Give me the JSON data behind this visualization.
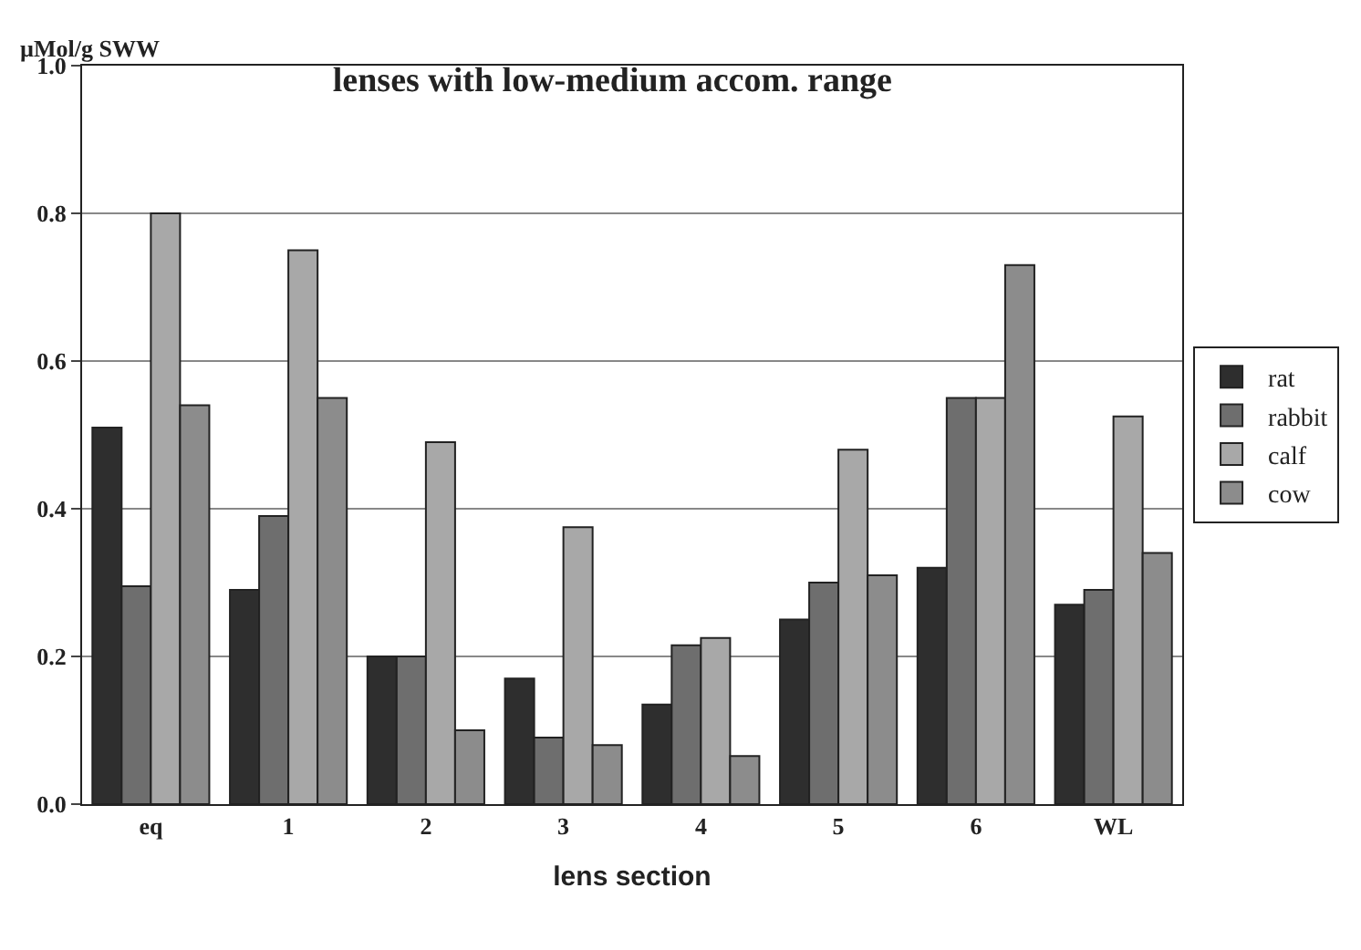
{
  "chart_data": {
    "type": "bar",
    "title": "lenses with low-medium accom. range",
    "xlabel": "lens section",
    "ylabel": "µMol/g SWW",
    "categories": [
      "eq",
      "1",
      "2",
      "3",
      "4",
      "5",
      "6",
      "WL"
    ],
    "series": [
      {
        "name": "rat",
        "color": "#2e2e2e",
        "values": [
          0.51,
          0.29,
          0.2,
          0.17,
          0.135,
          0.25,
          0.32,
          0.27
        ]
      },
      {
        "name": "rabbit",
        "color": "#6e6e6e",
        "values": [
          0.295,
          0.39,
          0.2,
          0.09,
          0.215,
          0.3,
          0.55,
          0.29
        ]
      },
      {
        "name": "calf",
        "color": "#a8a8a8",
        "values": [
          0.8,
          0.75,
          0.49,
          0.375,
          0.225,
          0.48,
          0.55,
          0.525
        ]
      },
      {
        "name": "cow",
        "color": "#8c8c8c",
        "values": [
          0.54,
          0.55,
          0.1,
          0.08,
          0.065,
          0.31,
          0.73,
          0.34
        ]
      }
    ],
    "ylim": [
      0,
      1.0
    ],
    "yticks": [
      {
        "value": 0,
        "label": "0.0"
      },
      {
        "value": 0.2,
        "label": "0.2"
      },
      {
        "value": 0.4,
        "label": "0.4"
      },
      {
        "value": 0.6,
        "label": "0.6"
      },
      {
        "value": 0.8,
        "label": "0.8"
      },
      {
        "value": 1.0,
        "label": "1.0"
      }
    ],
    "grid": "y",
    "legend": "right"
  }
}
